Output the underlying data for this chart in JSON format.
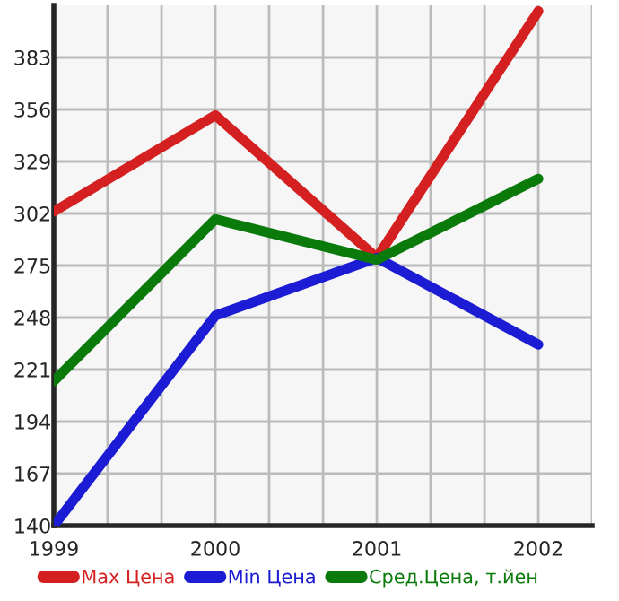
{
  "chart_data": {
    "type": "line",
    "x": [
      1999,
      2000,
      2001,
      2002
    ],
    "series": [
      {
        "name": "Max Цена",
        "color": "#d42020",
        "values": [
          303,
          353,
          279,
          407
        ]
      },
      {
        "name": "Min Цена",
        "color": "#1c1cd4",
        "values": [
          140,
          249,
          279,
          234
        ]
      },
      {
        "name": "Сред.Цена, т.йен",
        "color": "#0a7a0a",
        "values": [
          215,
          299,
          278,
          320
        ]
      }
    ],
    "xlim": [
      1999,
      2002.333
    ],
    "xticks": [
      1999,
      {
        "value": 1999.333,
        "label": null
      },
      {
        "value": 1999.667,
        "label": null
      },
      2000,
      {
        "value": 2000.333,
        "label": null
      },
      {
        "value": 2000.667,
        "label": null
      },
      2001,
      {
        "value": 2001.333,
        "label": null
      },
      {
        "value": 2001.667,
        "label": null
      },
      2002,
      {
        "value": 2002.333,
        "label": null
      }
    ],
    "ylim": [
      140,
      410
    ],
    "yticks": [
      140,
      167,
      194,
      221,
      248,
      275,
      302,
      329,
      356,
      383
    ],
    "grid": true,
    "legend": "bottom",
    "marker": "none",
    "line_style": "solid"
  }
}
